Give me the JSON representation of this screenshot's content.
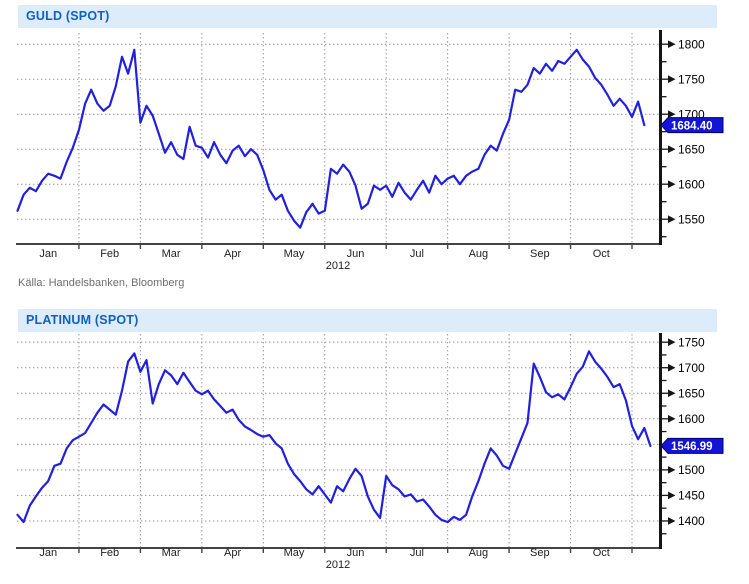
{
  "colors": {
    "header_bg": "#dcecfa",
    "header_text": "#1160bf",
    "grid": "#999999",
    "x_axis": "#444444",
    "y_axis": "#151515",
    "tick_label": "#000000",
    "month_label": "#222222",
    "tag_bg": "#1414d6",
    "tag_border": "#000070",
    "tag_text": "#ffffff",
    "source_text": "#6e6e6e"
  },
  "chart_data": [
    {
      "id": "guld",
      "type": "line",
      "title": "GULD (SPOT)",
      "source": "Källa: Handelsbanken, Bloomberg",
      "months": [
        "Jan",
        "Feb",
        "Mar",
        "Apr",
        "May",
        "Jun",
        "Jul",
        "Aug",
        "Sep",
        "Oct"
      ],
      "year": "2012",
      "points_per_month": 10,
      "y_ticks": [
        1550,
        1600,
        1650,
        1700,
        1750,
        1800
      ],
      "y_minor_step": 25,
      "ylim": [
        1516,
        1816
      ],
      "grid": true,
      "legend": "none",
      "axis_side": "right",
      "last_price": 1684.4,
      "last_price_label": "1684.40",
      "line_color": "#2121dd",
      "values": [
        1562,
        1585,
        1595,
        1590,
        1605,
        1615,
        1612,
        1608,
        1632,
        1652,
        1678,
        1715,
        1735,
        1715,
        1705,
        1712,
        1740,
        1782,
        1758,
        1792,
        1688,
        1712,
        1698,
        1672,
        1645,
        1660,
        1642,
        1636,
        1682,
        1655,
        1652,
        1638,
        1660,
        1642,
        1630,
        1648,
        1655,
        1640,
        1650,
        1642,
        1620,
        1592,
        1578,
        1585,
        1562,
        1548,
        1538,
        1560,
        1572,
        1558,
        1562,
        1622,
        1615,
        1628,
        1618,
        1598,
        1565,
        1572,
        1598,
        1592,
        1598,
        1582,
        1602,
        1588,
        1578,
        1592,
        1605,
        1588,
        1612,
        1600,
        1608,
        1612,
        1600,
        1612,
        1618,
        1622,
        1642,
        1655,
        1648,
        1672,
        1692,
        1735,
        1732,
        1742,
        1766,
        1758,
        1772,
        1762,
        1776,
        1772,
        1782,
        1792,
        1778,
        1768,
        1752,
        1742,
        1728,
        1712,
        1722,
        1712,
        1696,
        1718,
        1684.4
      ]
    },
    {
      "id": "platinum",
      "type": "line",
      "title": "PLATINUM (SPOT)",
      "source": "",
      "months": [
        "Jan",
        "Feb",
        "Mar",
        "Apr",
        "May",
        "Jun",
        "Jul",
        "Aug",
        "Sep",
        "Oct"
      ],
      "year": "2012",
      "points_per_month": 10,
      "y_ticks": [
        1400,
        1450,
        1500,
        1550,
        1600,
        1650,
        1700,
        1750
      ],
      "y_minor_step": 25,
      "ylim": [
        1349,
        1766
      ],
      "grid": true,
      "legend": "none",
      "axis_side": "right",
      "last_price": 1546.99,
      "last_price_label": "1546.99",
      "line_color": "#2121dd",
      "values": [
        1412,
        1398,
        1430,
        1448,
        1465,
        1478,
        1508,
        1512,
        1542,
        1558,
        1565,
        1572,
        1592,
        1612,
        1628,
        1618,
        1608,
        1655,
        1712,
        1728,
        1692,
        1715,
        1630,
        1668,
        1695,
        1685,
        1668,
        1690,
        1672,
        1655,
        1648,
        1655,
        1638,
        1625,
        1612,
        1618,
        1598,
        1585,
        1578,
        1570,
        1565,
        1568,
        1552,
        1542,
        1512,
        1492,
        1478,
        1462,
        1452,
        1468,
        1452,
        1436,
        1468,
        1458,
        1482,
        1502,
        1488,
        1448,
        1422,
        1406,
        1488,
        1470,
        1462,
        1448,
        1452,
        1438,
        1442,
        1428,
        1412,
        1402,
        1398,
        1408,
        1402,
        1412,
        1448,
        1478,
        1512,
        1542,
        1528,
        1508,
        1502,
        1532,
        1562,
        1592,
        1708,
        1682,
        1652,
        1642,
        1648,
        1638,
        1662,
        1688,
        1702,
        1732,
        1712,
        1698,
        1682,
        1662,
        1668,
        1636,
        1586,
        1560,
        1582,
        1546.99
      ]
    }
  ]
}
